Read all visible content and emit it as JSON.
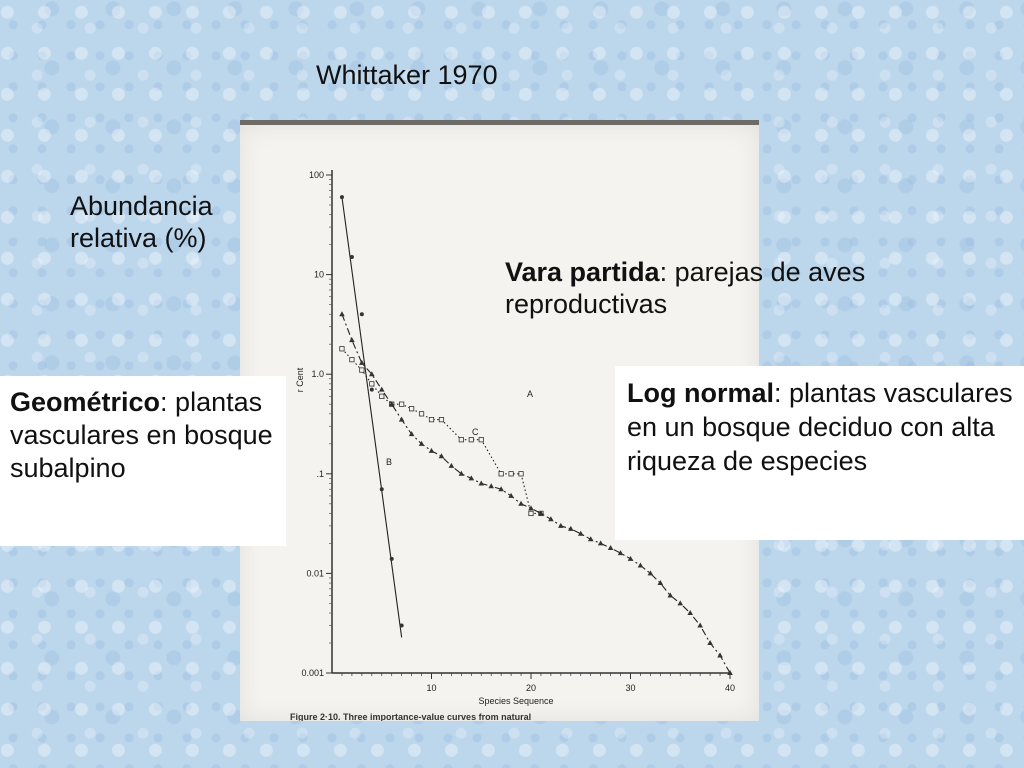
{
  "slide": {
    "title": "Whittaker 1970",
    "ylabel": "Abundancia relativa (%)",
    "annotations": {
      "vara": {
        "bold": "Vara partida",
        "rest": ": parejas de aves reproductivas"
      },
      "geometric": {
        "bold": "Geométrico",
        "rest": ": plantas vasculares en bosque subalpino"
      },
      "lognormal": {
        "bold": "Log normal",
        "rest": ": plantas vasculares en un bosque deciduo con alta riqueza de especies"
      }
    }
  },
  "chart_data": {
    "type": "scatter",
    "xlabel": "Species Sequence",
    "ylabel": "r Cent",
    "caption": "Figure 2·10. Three importance-value curves from natural",
    "yscale": "log",
    "xlim": [
      0,
      40
    ],
    "ylim": [
      0.001,
      100
    ],
    "x_ticks": [
      10,
      20,
      30,
      40
    ],
    "y_ticks": [
      "100",
      "10",
      "1.0",
      ".1",
      "0.01",
      "0.001"
    ],
    "series": [
      {
        "name": "A",
        "marker": "square",
        "points": [
          [
            1,
            1.8
          ],
          [
            2,
            1.4
          ],
          [
            3,
            1.1
          ],
          [
            4,
            0.8
          ],
          [
            5,
            0.6
          ],
          [
            6,
            0.5
          ],
          [
            7,
            0.5
          ],
          [
            8,
            0.45
          ],
          [
            9,
            0.4
          ],
          [
            10,
            0.35
          ],
          [
            11,
            0.35
          ],
          [
            13,
            0.22
          ],
          [
            14,
            0.22
          ],
          [
            15,
            0.22
          ],
          [
            17,
            0.1
          ],
          [
            18,
            0.1
          ],
          [
            19,
            0.1
          ],
          [
            20,
            0.04
          ],
          [
            21,
            0.04
          ]
        ]
      },
      {
        "name": "B",
        "marker": "circle",
        "points": [
          [
            1,
            60
          ],
          [
            2,
            15
          ],
          [
            3,
            4
          ],
          [
            4,
            0.7
          ],
          [
            5,
            0.07
          ],
          [
            6,
            0.014
          ],
          [
            7,
            0.003
          ]
        ]
      },
      {
        "name": "C",
        "marker": "triangle",
        "points": [
          [
            1,
            4
          ],
          [
            2,
            2.2
          ],
          [
            3,
            1.3
          ],
          [
            4,
            1.0
          ],
          [
            5,
            0.7
          ],
          [
            6,
            0.5
          ],
          [
            7,
            0.35
          ],
          [
            8,
            0.25
          ],
          [
            9,
            0.2
          ],
          [
            10,
            0.17
          ],
          [
            11,
            0.15
          ],
          [
            12,
            0.12
          ],
          [
            13,
            0.1
          ],
          [
            14,
            0.09
          ],
          [
            15,
            0.08
          ],
          [
            16,
            0.075
          ],
          [
            17,
            0.07
          ],
          [
            18,
            0.06
          ],
          [
            19,
            0.05
          ],
          [
            20,
            0.045
          ],
          [
            21,
            0.04
          ],
          [
            22,
            0.035
          ],
          [
            23,
            0.03
          ],
          [
            24,
            0.028
          ],
          [
            25,
            0.025
          ],
          [
            26,
            0.022
          ],
          [
            27,
            0.02
          ],
          [
            28,
            0.018
          ],
          [
            29,
            0.016
          ],
          [
            30,
            0.014
          ],
          [
            31,
            0.012
          ],
          [
            32,
            0.01
          ],
          [
            33,
            0.008
          ],
          [
            34,
            0.006
          ],
          [
            35,
            0.005
          ],
          [
            36,
            0.004
          ],
          [
            37,
            0.003
          ],
          [
            38,
            0.002
          ],
          [
            39,
            0.0015
          ],
          [
            40,
            0.001
          ]
        ]
      }
    ]
  }
}
